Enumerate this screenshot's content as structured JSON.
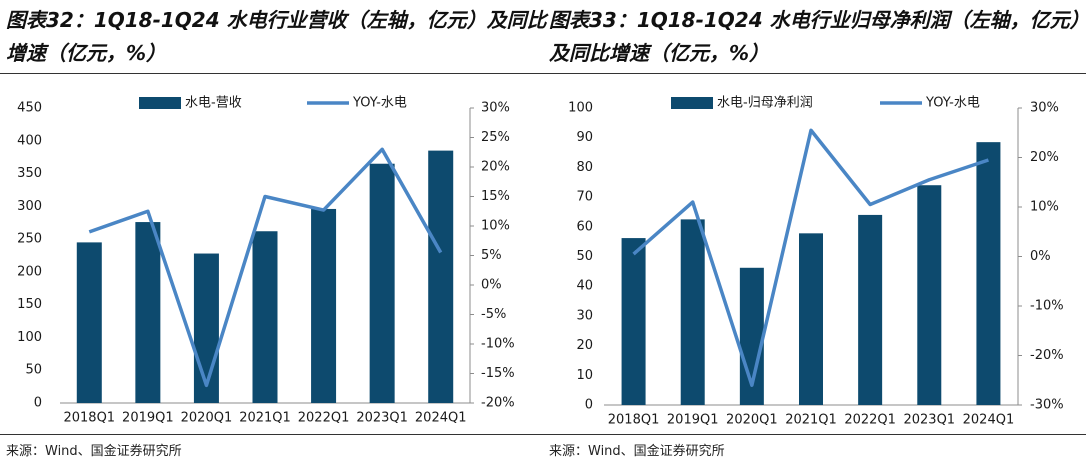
{
  "colors": {
    "bar": "#0D4A6E",
    "line": "#4A86C5",
    "axis": "#8C8C8C"
  },
  "charts": [
    {
      "title_lines": [
        "图表32：1Q18-1Q24 水电行业营收（左轴，亿元）及同比",
        "增速（亿元，%）"
      ],
      "source": "来源：Wind、国金证券研究所"
    },
    {
      "title_lines": [
        "图表33：1Q18-1Q24 水电行业归母净利润（左轴，亿元）",
        "及同比增速（亿元，%）"
      ],
      "source": "来源：Wind、国金证券研究所"
    }
  ],
  "chart_data": [
    {
      "type": "bar",
      "categories": [
        "2018Q1",
        "2019Q1",
        "2020Q1",
        "2021Q1",
        "2022Q1",
        "2023Q1",
        "2024Q1"
      ],
      "series": [
        {
          "name": "水电-营收",
          "type": "bar",
          "axis": "left",
          "values": [
            245,
            276,
            228,
            262,
            296,
            365,
            385
          ]
        },
        {
          "name": "YOY-水电",
          "type": "line",
          "axis": "right",
          "values": [
            9.0,
            12.5,
            -17.0,
            15.0,
            12.7,
            23.0,
            5.5
          ]
        }
      ],
      "ylim": [
        0,
        450
      ],
      "yticks": [
        0,
        50,
        100,
        150,
        200,
        250,
        300,
        350,
        400,
        450
      ],
      "ylim_right": [
        -20,
        30
      ],
      "yticks_right": [
        -20,
        -15,
        -10,
        -5,
        0,
        5,
        10,
        15,
        20,
        25,
        30
      ],
      "tick_suffix_right": "%",
      "legend": "top-center"
    },
    {
      "type": "bar",
      "categories": [
        "2018Q1",
        "2019Q1",
        "2020Q1",
        "2021Q1",
        "2022Q1",
        "2023Q1",
        "2024Q1"
      ],
      "series": [
        {
          "name": "水电-归母净利润",
          "type": "bar",
          "axis": "left",
          "values": [
            56.2,
            62.5,
            46.2,
            57.8,
            64.0,
            74.0,
            88.5
          ]
        },
        {
          "name": "YOY-水电",
          "type": "line",
          "axis": "right",
          "values": [
            0.5,
            11.0,
            -26.0,
            25.5,
            10.5,
            15.5,
            19.5
          ]
        }
      ],
      "ylim": [
        0,
        100
      ],
      "yticks": [
        0,
        10,
        20,
        30,
        40,
        50,
        60,
        70,
        80,
        90,
        100
      ],
      "ylim_right": [
        -30,
        30
      ],
      "yticks_right": [
        -30,
        -20,
        -10,
        0,
        10,
        20,
        30
      ],
      "tick_suffix_right": "%",
      "legend": "top-center"
    }
  ]
}
